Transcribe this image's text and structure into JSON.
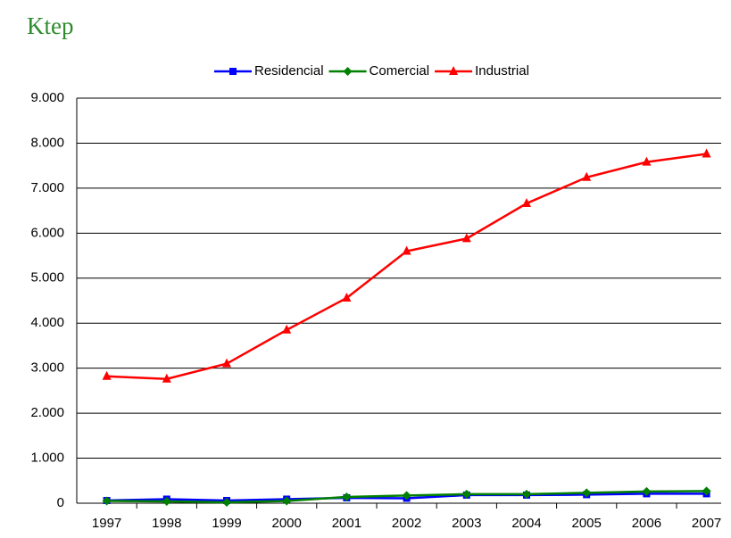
{
  "chart_data": {
    "type": "line",
    "title": "Ktep",
    "categories": [
      "1997",
      "1998",
      "1999",
      "2000",
      "2001",
      "2002",
      "2003",
      "2004",
      "2005",
      "2006",
      "2007"
    ],
    "series": [
      {
        "name": "Residencial",
        "color": "#0000ff",
        "marker": "square",
        "values": [
          60,
          90,
          60,
          90,
          120,
          110,
          180,
          180,
          190,
          210,
          210
        ]
      },
      {
        "name": "Comercial",
        "color": "#008000",
        "marker": "diamond",
        "values": [
          50,
          40,
          20,
          50,
          140,
          170,
          200,
          200,
          230,
          260,
          270
        ]
      },
      {
        "name": "Industrial",
        "color": "#ff0000",
        "marker": "triangle",
        "values": [
          2820,
          2760,
          3100,
          3850,
          4560,
          5600,
          5880,
          6660,
          7240,
          7580,
          7760
        ]
      }
    ],
    "ylim": [
      0,
      9000
    ],
    "yticks": [
      0,
      {
        "value": 1000,
        "label": "1.000"
      },
      {
        "value": 2000,
        "label": "2.000"
      },
      {
        "value": 3000,
        "label": "3.000"
      },
      {
        "value": 4000,
        "label": "4.000"
      },
      {
        "value": 5000,
        "label": "5.000"
      },
      {
        "value": 6000,
        "label": "6.000"
      },
      {
        "value": 7000,
        "label": "7.000"
      },
      {
        "value": 8000,
        "label": "8.000"
      },
      {
        "value": 9000,
        "label": "9.000"
      }
    ],
    "grid": true,
    "legend": "top"
  }
}
